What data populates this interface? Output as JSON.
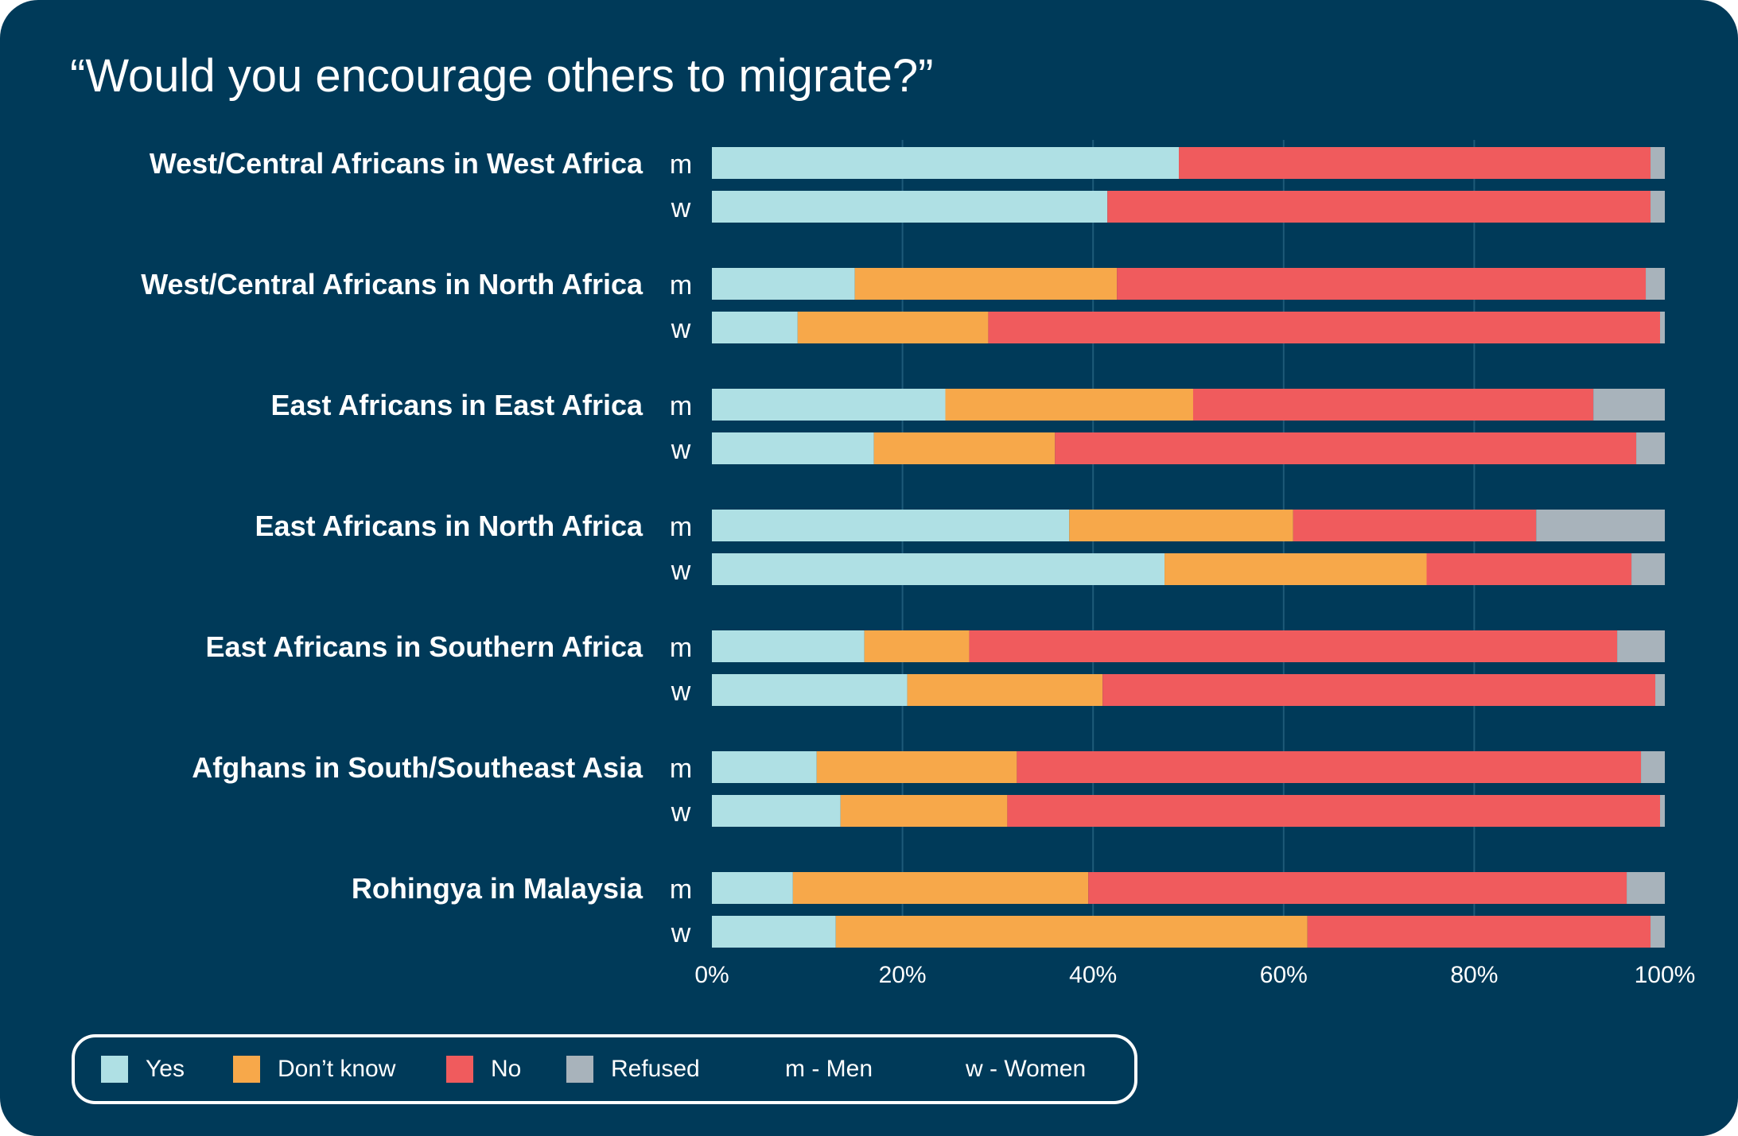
{
  "title": "“Would you encourage others to migrate?”",
  "colors": {
    "background": "#003a59",
    "yes": "#afe0e4",
    "dont_know": "#f7a84a",
    "no": "#f05b5d",
    "refused": "#a8b3bb",
    "text": "#ffffff"
  },
  "chart_data": {
    "type": "bar",
    "orientation": "horizontal",
    "stacked": true,
    "title": "“Would you encourage others to migrate?”",
    "xlim": [
      0,
      100
    ],
    "x_ticks": [
      "0%",
      "20%",
      "40%",
      "60%",
      "80%",
      "100%"
    ],
    "grid": true,
    "series": [
      {
        "name": "Yes",
        "color": "#afe0e4"
      },
      {
        "name": "Don’t know",
        "color": "#f7a84a"
      },
      {
        "name": "No",
        "color": "#f05b5d"
      },
      {
        "name": "Refused",
        "color": "#a8b3bb"
      }
    ],
    "groups": [
      {
        "label": "West/Central Africans in West Africa",
        "bars": [
          {
            "gender": "m",
            "values": [
              49,
              0,
              49.5,
              1.5
            ]
          },
          {
            "gender": "w",
            "values": [
              41.5,
              0,
              57,
              1.5
            ]
          }
        ]
      },
      {
        "label": "West/Central Africans in North Africa",
        "bars": [
          {
            "gender": "m",
            "values": [
              15,
              27.5,
              55.5,
              2
            ]
          },
          {
            "gender": "w",
            "values": [
              9,
              20,
              70.5,
              0.5
            ]
          }
        ]
      },
      {
        "label": "East Africans in East Africa",
        "bars": [
          {
            "gender": "m",
            "values": [
              24.5,
              26,
              42,
              7.5
            ]
          },
          {
            "gender": "w",
            "values": [
              17,
              19,
              61,
              3
            ]
          }
        ]
      },
      {
        "label": "East Africans in North Africa",
        "bars": [
          {
            "gender": "m",
            "values": [
              37.5,
              23.5,
              25.5,
              13.5
            ]
          },
          {
            "gender": "w",
            "values": [
              47.5,
              27.5,
              21.5,
              3.5
            ]
          }
        ]
      },
      {
        "label": "East Africans in Southern Africa",
        "bars": [
          {
            "gender": "m",
            "values": [
              16,
              11,
              68,
              5
            ]
          },
          {
            "gender": "w",
            "values": [
              20.5,
              20.5,
              58,
              1
            ]
          }
        ]
      },
      {
        "label": "Afghans in South/Southeast Asia",
        "bars": [
          {
            "gender": "m",
            "values": [
              11,
              21,
              65.5,
              2.5
            ]
          },
          {
            "gender": "w",
            "values": [
              13.5,
              17.5,
              68.5,
              0.5
            ]
          }
        ]
      },
      {
        "label": "Rohingya in Malaysia",
        "bars": [
          {
            "gender": "m",
            "values": [
              8.5,
              31,
              56.5,
              4
            ]
          },
          {
            "gender": "w",
            "values": [
              13,
              49.5,
              36,
              1.5
            ]
          }
        ]
      }
    ]
  },
  "legend": {
    "items": [
      {
        "label": "Yes",
        "color": "#afe0e4"
      },
      {
        "label": "Don’t know",
        "color": "#f7a84a"
      },
      {
        "label": "No",
        "color": "#f05b5d"
      },
      {
        "label": "Refused",
        "color": "#a8b3bb"
      }
    ],
    "notes": [
      "m - Men",
      "w - Women"
    ]
  }
}
